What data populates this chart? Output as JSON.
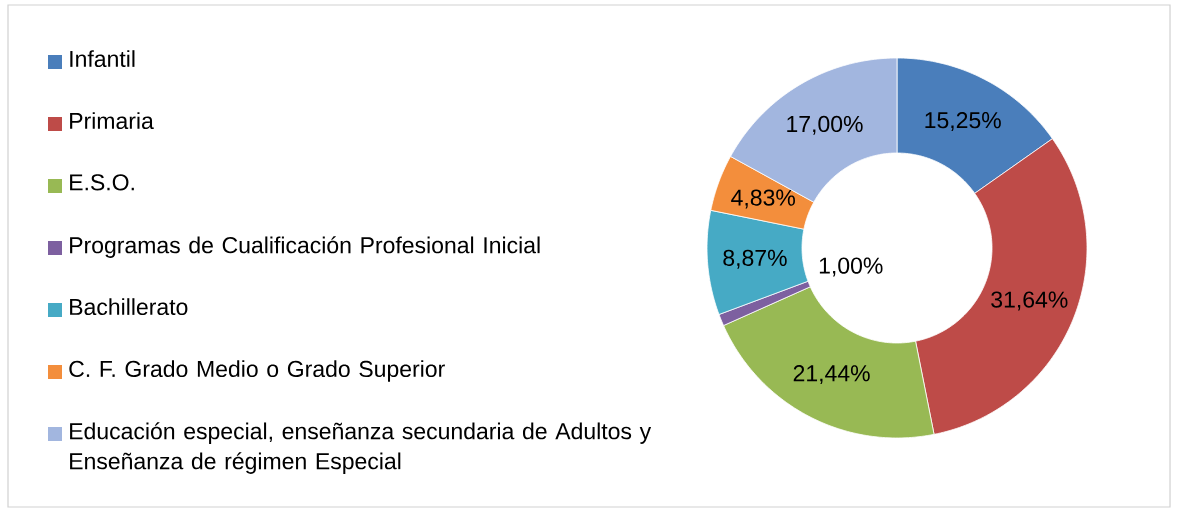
{
  "chart_data": {
    "type": "donut",
    "categories": [
      "Infantil",
      "Primaria",
      "E.S.O.",
      "Programas de Cualificación Profesional Inicial",
      "Bachillerato",
      "C. F. Grado Medio o Grado Superior",
      "Educación especial, enseñanza secundaria de Adultos y Enseñanza de régimen Especial"
    ],
    "values": [
      15.25,
      31.64,
      21.44,
      1.0,
      8.87,
      4.83,
      17.0
    ],
    "value_labels": [
      "15,25%",
      "31,64%",
      "21,44%",
      "1,00%",
      "8,87%",
      "4,83%",
      "17,00%"
    ],
    "colors": [
      "#4a7ebb",
      "#be4b48",
      "#98b954",
      "#7d60a0",
      "#46aac5",
      "#f38e3c",
      "#a2b6df"
    ],
    "legend": "left"
  }
}
